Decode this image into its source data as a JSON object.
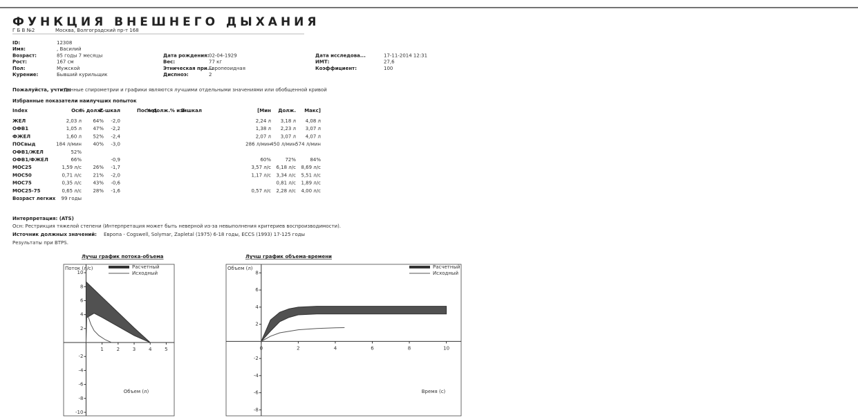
{
  "header": {
    "title": "ФУНКЦИЯ ВНЕШНЕГО ДЫХАНИЯ",
    "organization": "Г Б В №2",
    "address": "Москва, Волгоградский пр-т 168"
  },
  "patient": {
    "columns": [
      [
        {
          "label": "ID:",
          "value": "12308"
        },
        {
          "label": "Имя:",
          "value": ", Василий"
        },
        {
          "label": "Возраст:",
          "value": "85 годы 7 месяцы"
        },
        {
          "label": "Рост:",
          "value": "167 см"
        },
        {
          "label": "Пол:",
          "value": "Мужской"
        },
        {
          "label": "Курение:",
          "value": "Бывший курильщик"
        }
      ],
      [
        {
          "label": "Дата рождения:",
          "value": "02-04-1929"
        },
        {
          "label": "Вес:",
          "value": "77 кг"
        },
        {
          "label": "Этническая при...",
          "value": "Европеоидная"
        },
        {
          "label": "Диспноэ:",
          "value": "2"
        }
      ],
      [
        {
          "label": "Дата исследова...",
          "value": "17-11-2014 12:31"
        },
        {
          "label": "ИМТ:",
          "value": "27,6"
        },
        {
          "label": "Коэффициент:",
          "value": "100"
        }
      ]
    ]
  },
  "notice": {
    "label": "Пожалуйста, учтите:",
    "text": "Данные спирометрии и графики являются лучшими отдельными значениями или обобщенной кривой"
  },
  "table": {
    "title": "Избранные показатели наилучших попыток",
    "headers": [
      "Index",
      "Осн",
      "% долж.",
      "Z-шкал",
      "После1",
      "% долж.",
      "% изм",
      "Z-шкал",
      "[Мин",
      "Долж.",
      "Макс]"
    ],
    "rows": [
      [
        "ЖЕЛ",
        "2,03 л",
        "64%",
        "-2,0",
        null,
        null,
        null,
        null,
        "2,24 л",
        "3,18 л",
        "4,08 л"
      ],
      [
        "ОФВ1",
        "1,05 л",
        "47%",
        "-2,2",
        null,
        null,
        null,
        null,
        "1,38 л",
        "2,23 л",
        "3,07 л"
      ],
      [
        "ФЖЕЛ",
        "1,60 л",
        "52%",
        "-2,4",
        null,
        null,
        null,
        null,
        "2,07 л",
        "3,07 л",
        "4,07 л"
      ],
      [
        "ПОСвыд",
        "184 л/мин",
        "40%",
        "-3,0",
        null,
        null,
        null,
        null,
        "286 л/мин",
        "450 л/мин",
        "574 л/мин"
      ],
      [
        "ОФВ1/ЖЕЛ",
        "52%",
        null,
        null,
        null,
        null,
        null,
        null,
        null,
        null,
        null
      ],
      [
        "ОФВ1/ФЖЕЛ",
        "66%",
        null,
        "-0,9",
        null,
        null,
        null,
        null,
        "60%",
        "72%",
        "84%"
      ],
      [
        "МОС25",
        "1,59 л/с",
        "26%",
        "-1,7",
        null,
        null,
        null,
        null,
        "3,57 л/с",
        "6,18 л/с",
        "8,69 л/с"
      ],
      [
        "МОС50",
        "0,71 л/с",
        "21%",
        "-2,0",
        null,
        null,
        null,
        null,
        "1,17 л/с",
        "3,34 л/с",
        "5,51 л/с"
      ],
      [
        "МОС75",
        "0,35 л/с",
        "43%",
        "-0,6",
        null,
        null,
        null,
        null,
        null,
        "0,81 л/с",
        "1,89 л/с"
      ],
      [
        "МОС25-75",
        "0,65 л/с",
        "28%",
        "-1,6",
        null,
        null,
        null,
        null,
        "0,57 л/с",
        "2,28 л/с",
        "4,00 л/с"
      ],
      [
        "Возраст легких",
        "99 годы",
        null,
        null,
        null,
        null,
        null,
        null,
        null,
        null,
        null
      ]
    ]
  },
  "interpretation": {
    "title": "Интерпретация: (ATS)",
    "text": "Осн: Рестрикция тяжелой степени (Интерпретация может быть неверной из-за невыполнения критериев воспроизводимости).",
    "source_label": "Источник должных значений:",
    "source": "Европа - Cogswell, Solymar, Zapletal (1975) 6-18 годы, ECCS (1993) 17-125 годы",
    "note": "Результаты при BTPS."
  },
  "charts": [
    {
      "type": "line",
      "title": "Лучш график потока-объема",
      "ylabel": "Поток (л/с)",
      "xlabel": "Объем (л)",
      "xlim": [
        -1.4,
        5.5
      ],
      "ylim": [
        -10.5,
        11.2
      ],
      "xticks": [
        1,
        2,
        3,
        4,
        5
      ],
      "yticks": [
        -10,
        -8,
        -6,
        -4,
        -2,
        2,
        4,
        6,
        8,
        10
      ],
      "series": [
        {
          "name": "Расчетный",
          "color": "#333333",
          "x": [
            0,
            0.5,
            1,
            2,
            3,
            4
          ],
          "values": [
            8.7,
            7.6,
            6.5,
            4.3,
            2.1,
            0
          ],
          "lower": [
            3.5,
            4.2,
            3.6,
            2.3,
            1.0,
            0
          ]
        },
        {
          "name": "Исходный",
          "color": "#555555",
          "x": [
            0,
            0.05,
            0.15,
            0.3,
            0.5,
            0.8,
            1.2,
            1.6
          ],
          "values": [
            0,
            4.2,
            3.6,
            2.6,
            1.7,
            1.0,
            0.4,
            0
          ]
        }
      ]
    },
    {
      "type": "line",
      "title": "Лучш график объема-времени",
      "ylabel": "Объем (л)",
      "xlabel": "Время (с)",
      "xlim": [
        -1.9,
        10.8
      ],
      "ylim": [
        -8.7,
        9
      ],
      "xticks": [
        0,
        2,
        4,
        6,
        8,
        10
      ],
      "yticks": [
        -8,
        -6,
        -4,
        -2,
        2,
        4,
        6,
        8
      ],
      "series": [
        {
          "name": "Расчетный",
          "color": "#333333",
          "x": [
            0,
            0.5,
            1,
            1.5,
            2,
            3,
            4,
            6,
            8,
            10
          ],
          "values": [
            0,
            2.5,
            3.4,
            3.8,
            4,
            4.1,
            4.1,
            4.1,
            4.1,
            4.1
          ],
          "lower": [
            0,
            1.2,
            2.3,
            2.8,
            3.1,
            3.2,
            3.2,
            3.2,
            3.2,
            3.2
          ]
        },
        {
          "name": "Исходный",
          "color": "#555555",
          "x": [
            0,
            0.5,
            1,
            2,
            3,
            4,
            4.5
          ],
          "values": [
            0,
            0.6,
            1.0,
            1.35,
            1.5,
            1.58,
            1.6
          ]
        }
      ]
    }
  ]
}
